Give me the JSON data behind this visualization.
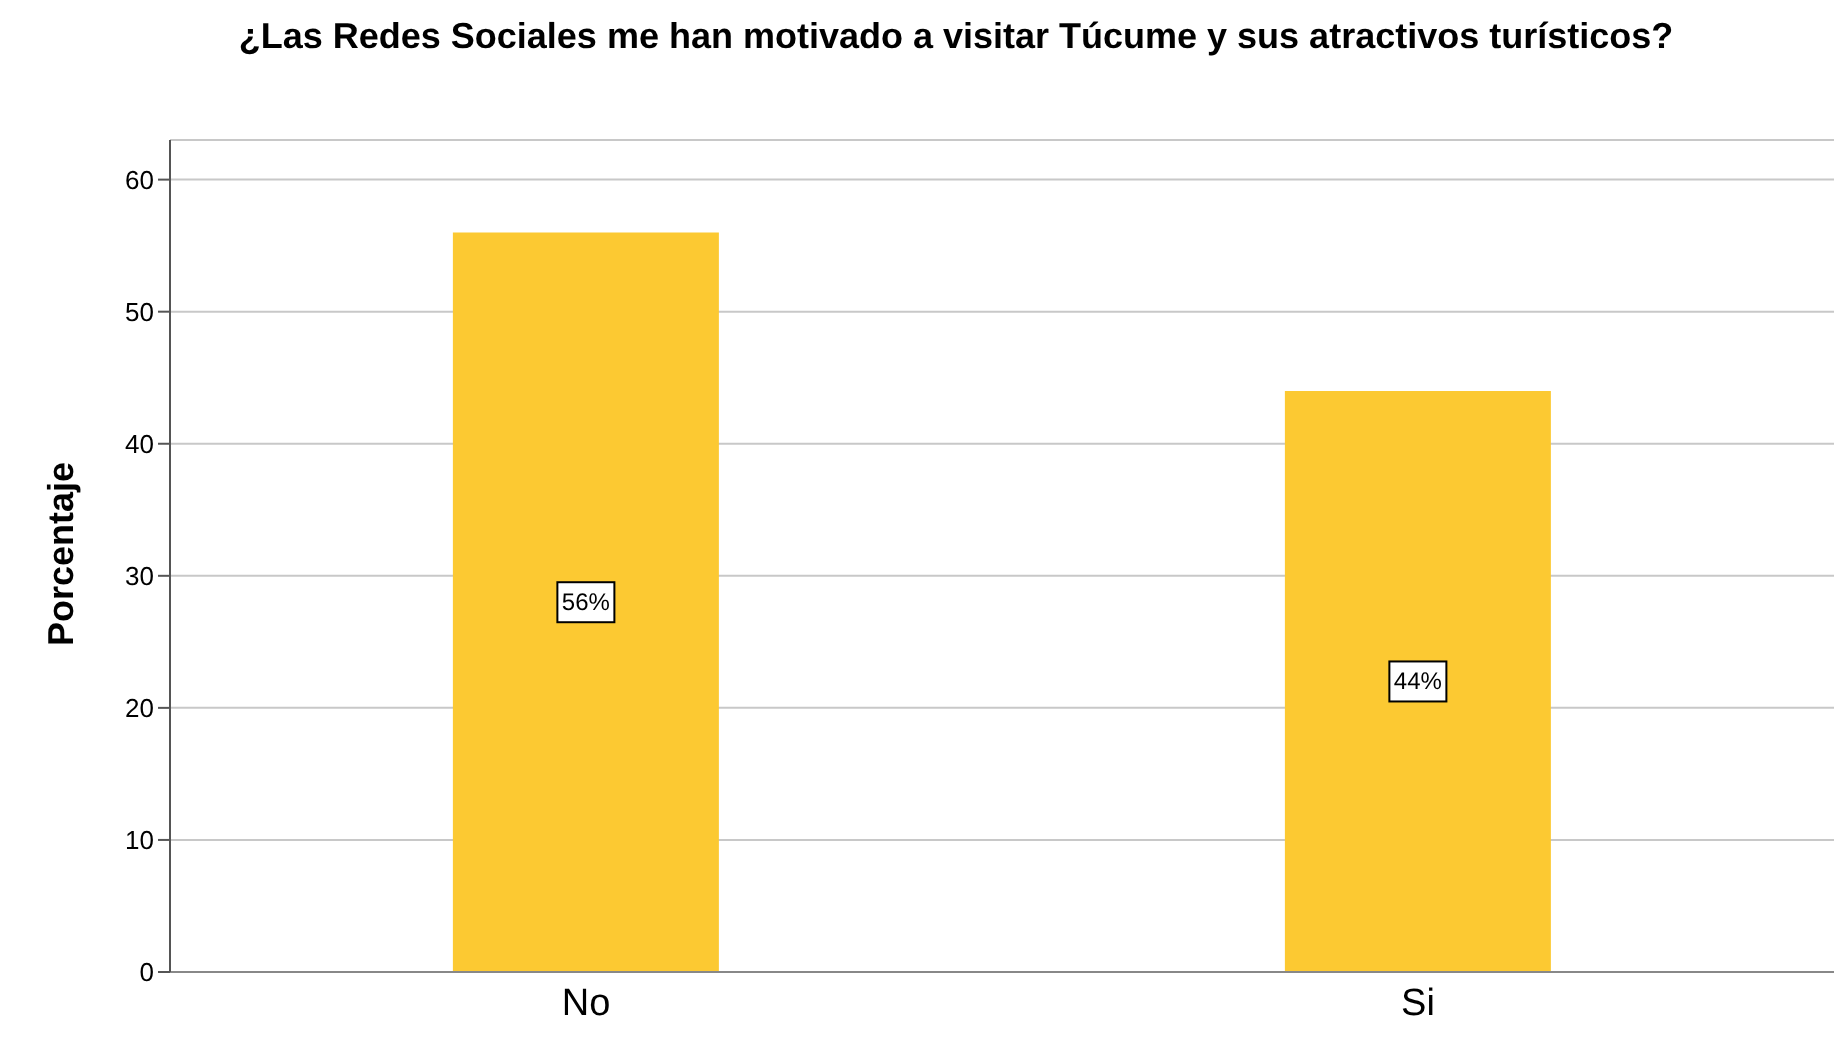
{
  "chart_data": {
    "type": "bar",
    "title": "¿Las Redes Sociales me han motivado a visitar Túcume y sus atractivos turísticos?",
    "ylabel": "Porcentaje",
    "categories": [
      "No",
      "Si"
    ],
    "values": [
      56,
      44
    ],
    "value_labels": [
      "56%",
      "44%"
    ],
    "color": "#fcc932",
    "ylim": [
      0,
      63
    ],
    "yticks": [
      0,
      10,
      20,
      30,
      40,
      50,
      60
    ],
    "grid": "y"
  }
}
